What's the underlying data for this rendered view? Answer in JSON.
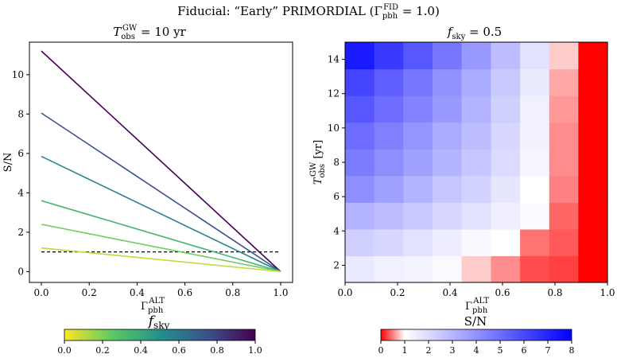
{
  "figure": {
    "suptitle_prefix": "Fiducial: “Early” PRIMORDIAL (Γ",
    "suptitle_sub": "pbh",
    "suptitle_sup": "FID",
    "suptitle_suffix": " = 1.0)"
  },
  "colors": {
    "threshold": "#000000",
    "hm_low": "#ff0000",
    "hm_mid": "#ffffff",
    "hm_high": "#0000ff",
    "viridis": [
      "#440154",
      "#3b528b",
      "#21918c",
      "#5ec962",
      "#fde725"
    ]
  },
  "chart_data": [
    {
      "type": "line",
      "title_prefix": "T",
      "title_sub": "obs",
      "title_sup": "GW",
      "title_suffix": " = 10 yr",
      "xlabel_main": "Γ",
      "xlabel_sub": "pbh",
      "xlabel_sup": "ALT",
      "ylabel": "S/N",
      "xlim": [
        -0.05,
        1.05
      ],
      "ylim": [
        -0.55,
        11.65
      ],
      "xticks": [
        0.0,
        0.2,
        0.4,
        0.6,
        0.8,
        1.0
      ],
      "xtick_labels": [
        "0.0",
        "0.2",
        "0.4",
        "0.6",
        "0.8",
        "1.0"
      ],
      "yticks": [
        0,
        2,
        4,
        6,
        8,
        10
      ],
      "ytick_labels": [
        "0",
        "2",
        "4",
        "6",
        "8",
        "10"
      ],
      "threshold": 1.0,
      "series": [
        {
          "fsky": 1.0,
          "x": [
            0.0,
            1.0
          ],
          "y": [
            11.2,
            0.0
          ]
        },
        {
          "fsky": 0.75,
          "x": [
            0.0,
            1.0
          ],
          "y": [
            8.05,
            0.0
          ]
        },
        {
          "fsky": 0.55,
          "x": [
            0.0,
            1.0
          ],
          "y": [
            5.85,
            0.0
          ]
        },
        {
          "fsky": 0.35,
          "x": [
            0.0,
            1.0
          ],
          "y": [
            3.6,
            0.0
          ]
        },
        {
          "fsky": 0.22,
          "x": [
            0.0,
            1.0
          ],
          "y": [
            2.4,
            0.0
          ]
        },
        {
          "fsky": 0.1,
          "x": [
            0.0,
            1.0
          ],
          "y": [
            1.2,
            0.0
          ]
        }
      ],
      "colorbar": {
        "label_main": "f",
        "label_sub": "sky",
        "range": [
          0.0,
          1.0
        ],
        "ticks": [
          "0.0",
          "0.2",
          "0.4",
          "0.6",
          "0.8",
          "1.0"
        ]
      }
    },
    {
      "type": "heatmap",
      "title_main": "f",
      "title_sub": "sky",
      "title_suffix": " = 0.5",
      "xlabel_main": "Γ",
      "xlabel_sub": "pbh",
      "xlabel_sup": "ALT",
      "ylabel_main": "T",
      "ylabel_sub": "obs",
      "ylabel_sup": "GW",
      "ylabel_suffix": " [yr]",
      "xlim": [
        0.0,
        1.0
      ],
      "ylim": [
        1.0,
        15.0
      ],
      "xticks": [
        0.0,
        0.2,
        0.4,
        0.6,
        0.8,
        1.0
      ],
      "xtick_labels": [
        "0.0",
        "0.2",
        "0.4",
        "0.6",
        "0.8",
        "1.0"
      ],
      "yticks": [
        2,
        4,
        6,
        8,
        10,
        12,
        14
      ],
      "ytick_labels": [
        "2",
        "4",
        "6",
        "8",
        "10",
        "12",
        "14"
      ],
      "x_edges": [
        0.0,
        0.111,
        0.222,
        0.333,
        0.444,
        0.556,
        0.667,
        0.778,
        0.889,
        1.0
      ],
      "y_edges": [
        1,
        2.5556,
        4.1111,
        5.6667,
        7.2222,
        8.7778,
        10.3333,
        11.8889,
        13.4444,
        15
      ],
      "z": [
        [
          1.6,
          1.4,
          1.3,
          1.1,
          0.8,
          0.55,
          0.3,
          0.25,
          0.0
        ],
        [
          2.3,
          2.1,
          1.8,
          1.5,
          1.2,
          1.0,
          0.45,
          0.35,
          0.0
        ],
        [
          3.1,
          2.8,
          2.5,
          2.1,
          1.8,
          1.45,
          1.1,
          0.4,
          0.0
        ],
        [
          4.1,
          3.6,
          3.1,
          2.6,
          2.2,
          1.7,
          1.0,
          0.5,
          0.0
        ],
        [
          4.6,
          4.1,
          3.6,
          3.1,
          2.6,
          2.0,
          1.25,
          0.55,
          0.0
        ],
        [
          5.0,
          4.5,
          3.9,
          3.3,
          2.8,
          2.1,
          1.35,
          0.55,
          0.0
        ],
        [
          5.6,
          5.0,
          4.4,
          3.8,
          3.1,
          2.3,
          1.4,
          0.6,
          0.0
        ],
        [
          6.1,
          5.4,
          4.7,
          4.0,
          3.3,
          2.5,
          1.55,
          0.65,
          0.0
        ],
        [
          7.3,
          6.4,
          5.6,
          4.7,
          3.8,
          2.8,
          1.8,
          0.8,
          0.0
        ]
      ],
      "colorbar": {
        "label": "S/N",
        "range": [
          0,
          8
        ],
        "ticks": [
          "0",
          "1",
          "2",
          "3",
          "4",
          "5",
          "6",
          "7",
          "8"
        ]
      }
    }
  ]
}
